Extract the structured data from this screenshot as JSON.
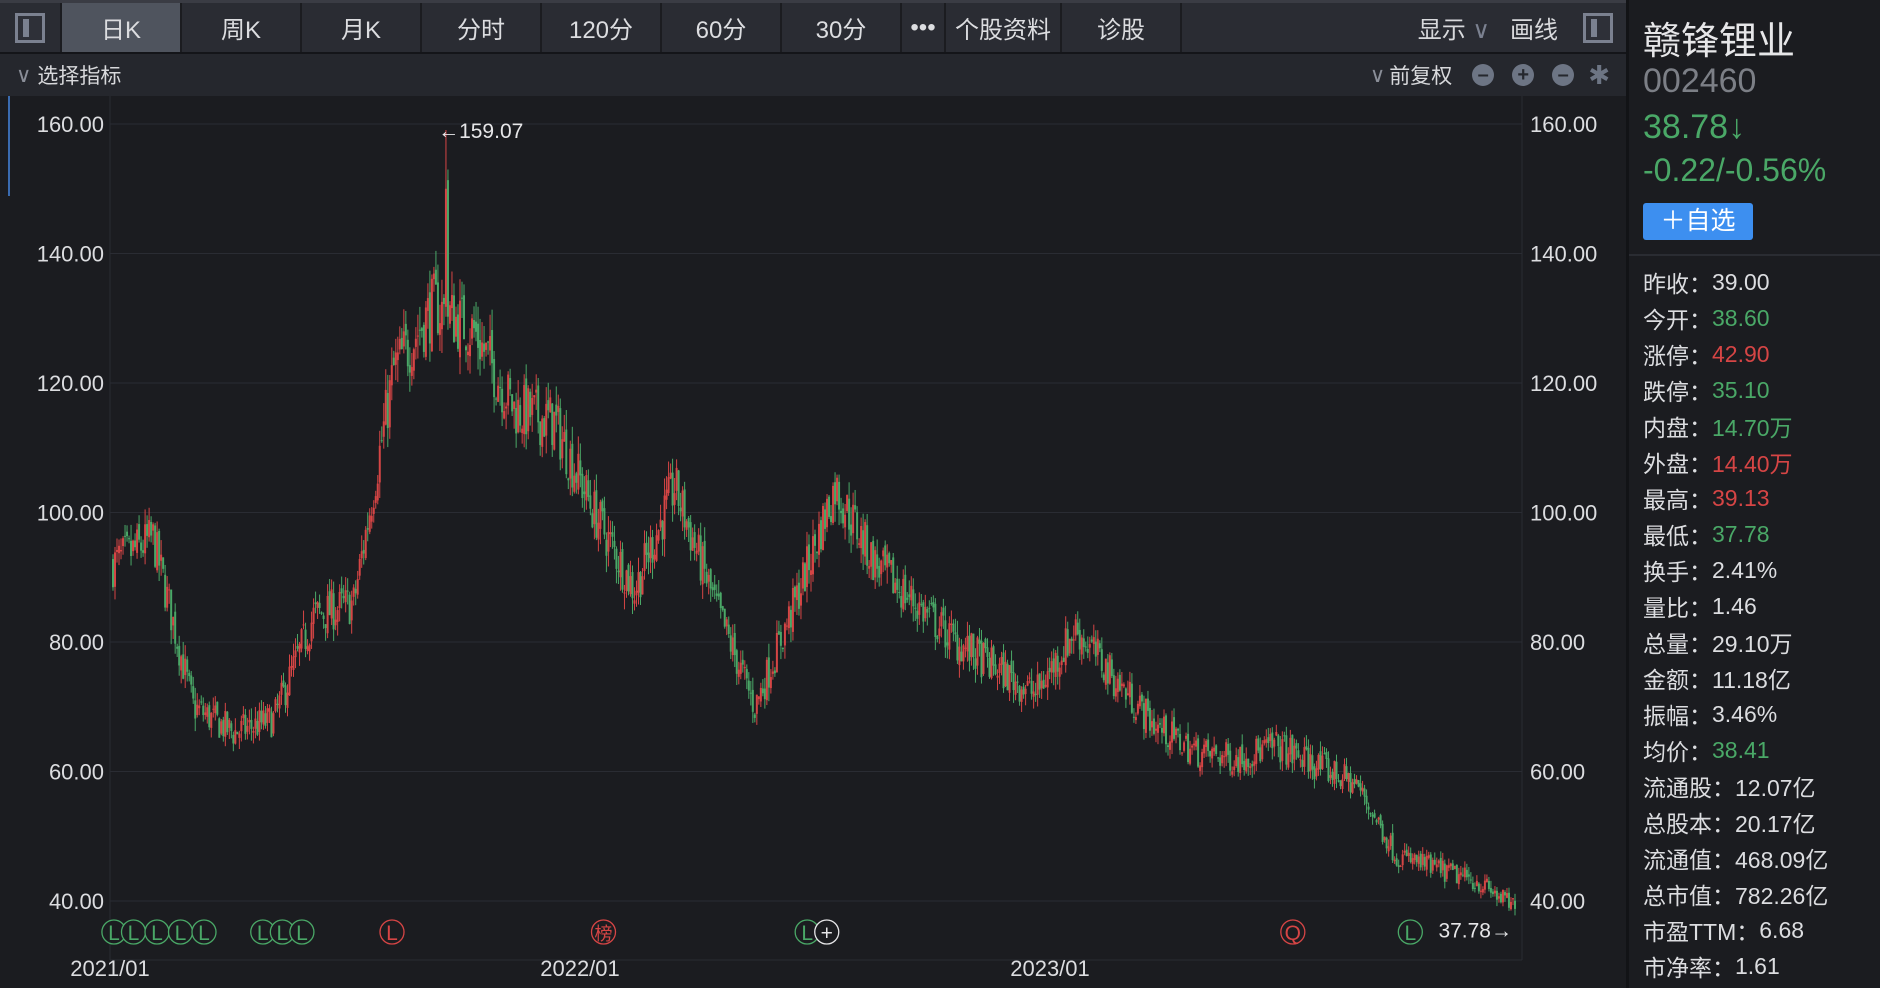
{
  "tabs": [
    "日K",
    "周K",
    "月K",
    "分时",
    "120分",
    "60分",
    "30分",
    "•••",
    "个股资料",
    "诊股"
  ],
  "toolbar": {
    "display": "显示",
    "draw": "画线",
    "indicator": "选择指标",
    "adjust": "前复权"
  },
  "stock": {
    "name": "赣锋锂业",
    "code": "002460",
    "price": "38.78↓",
    "change": "-0.22/-0.56%",
    "add_label": "＋自选"
  },
  "stats": [
    {
      "label": "昨收：",
      "value": "39.00",
      "color": "w"
    },
    {
      "label": "今开：",
      "value": "38.60",
      "color": "g"
    },
    {
      "label": "涨停：",
      "value": "42.90",
      "color": "r"
    },
    {
      "label": "跌停：",
      "value": "35.10",
      "color": "g"
    },
    {
      "label": "内盘：",
      "value": "14.70万",
      "color": "g"
    },
    {
      "label": "外盘：",
      "value": "14.40万",
      "color": "r"
    },
    {
      "label": "最高：",
      "value": "39.13",
      "color": "r"
    },
    {
      "label": "最低：",
      "value": "37.78",
      "color": "g"
    },
    {
      "label": "换手：",
      "value": "2.41%",
      "color": "w"
    },
    {
      "label": "量比：",
      "value": "1.46",
      "color": "w"
    },
    {
      "label": "总量：",
      "value": "29.10万",
      "color": "w"
    },
    {
      "label": "金额：",
      "value": "11.18亿",
      "color": "w"
    },
    {
      "label": "振幅：",
      "value": "3.46%",
      "color": "w"
    },
    {
      "label": "均价：",
      "value": "38.41",
      "color": "g"
    },
    {
      "label": "流通股：",
      "value": "12.07亿",
      "color": "w"
    },
    {
      "label": "总股本：",
      "value": "20.17亿",
      "color": "w"
    },
    {
      "label": "流通值：",
      "value": "468.09亿",
      "color": "w"
    },
    {
      "label": "总市值：",
      "value": "782.26亿",
      "color": "w"
    },
    {
      "label": "市盈TTM：",
      "value": "6.68",
      "color": "w"
    },
    {
      "label": "市净率：",
      "value": "1.61",
      "color": "w"
    }
  ],
  "chart_data": {
    "type": "candlestick",
    "yticks": [
      "160.00",
      "140.00",
      "120.00",
      "100.00",
      "80.00",
      "60.00",
      "40.00"
    ],
    "ylim": [
      40,
      160
    ],
    "xticks": [
      {
        "label": "2021/01",
        "month": 0
      },
      {
        "label": "2022/01",
        "month": 12
      },
      {
        "label": "2023/01",
        "month": 24
      }
    ],
    "monthly_close_approx": [
      92,
      96,
      70,
      66,
      68,
      84,
      86,
      122,
      132,
      128,
      116,
      114,
      100,
      88,
      104,
      86,
      70,
      86,
      104,
      92,
      86,
      80,
      76,
      72,
      82,
      74,
      67,
      63,
      62,
      64,
      61,
      58,
      47,
      45,
      43,
      38.78
    ],
    "max_label": "←159.07",
    "max_value": 159.07,
    "max_month": 8.3,
    "min_label": "37.78→",
    "min_value": 37.78,
    "events": [
      {
        "t": "L",
        "c": "g",
        "m": 0.1
      },
      {
        "t": "L",
        "c": "g",
        "m": 0.6
      },
      {
        "t": "L",
        "c": "g",
        "m": 1.2
      },
      {
        "t": "L",
        "c": "g",
        "m": 1.8
      },
      {
        "t": "L",
        "c": "g",
        "m": 2.4
      },
      {
        "t": "L",
        "c": "g",
        "m": 3.9
      },
      {
        "t": "L",
        "c": "g",
        "m": 4.4
      },
      {
        "t": "L",
        "c": "g",
        "m": 4.9
      },
      {
        "t": "L",
        "c": "r",
        "m": 7.2
      },
      {
        "t": "榜",
        "c": "r",
        "m": 12.6
      },
      {
        "t": "L",
        "c": "g",
        "m": 17.8
      },
      {
        "t": "+",
        "c": "w",
        "m": 18.3
      },
      {
        "t": "Q",
        "c": "r",
        "m": 30.2
      },
      {
        "t": "L",
        "c": "g",
        "m": 33.2
      }
    ],
    "colors": {
      "up": "#d64545",
      "down": "#4aa867"
    }
  }
}
